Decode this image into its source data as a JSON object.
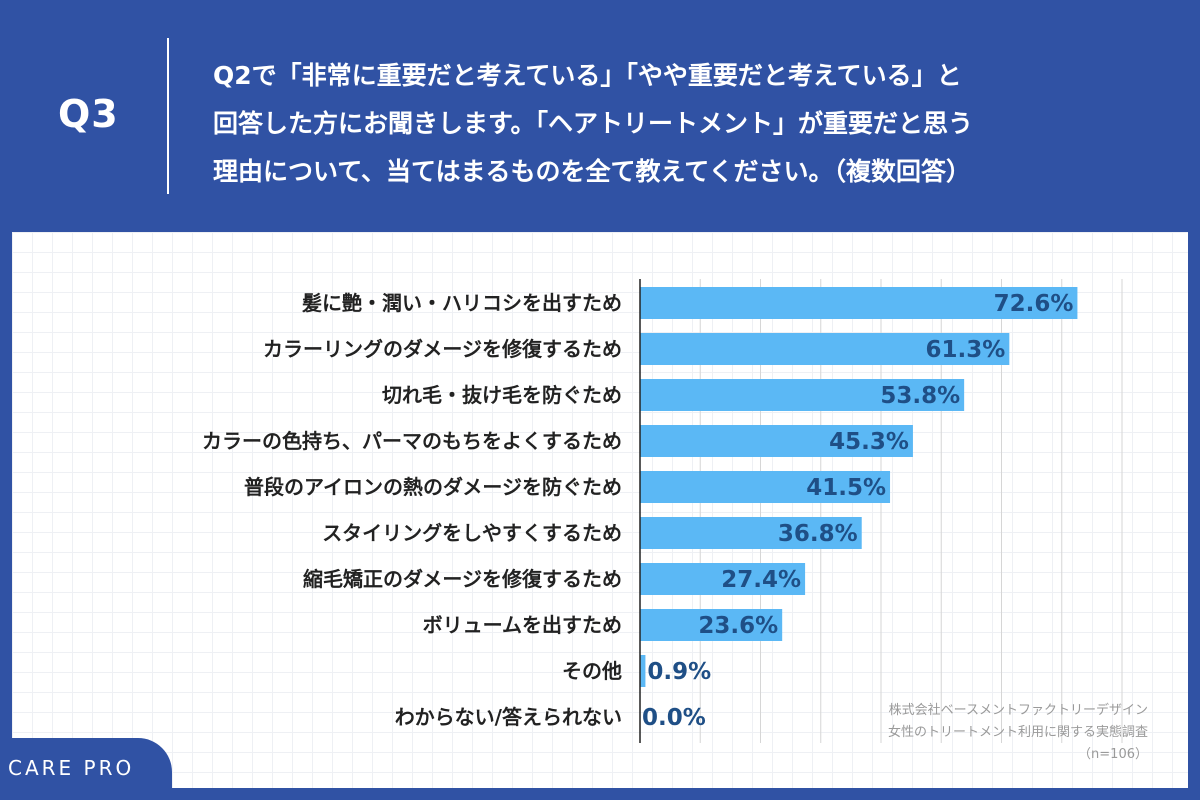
{
  "header": {
    "q_label": "Q3",
    "question_lines": [
      "Q2で「非常に重要だと考えている」「やや重要だと考えている」と",
      "回答した方にお聞きします。「ヘアトリートメント」が重要だと思う",
      "理由について、当てはまるものを全て教えてください。（複数回答）"
    ]
  },
  "chart_data": {
    "type": "bar",
    "orientation": "horizontal",
    "categories": [
      "髪に艶・潤い・ハリコシを出すため",
      "カラーリングのダメージを修復するため",
      "切れ毛・抜け毛を防ぐため",
      "カラーの色持ち、パーマのもちをよくするため",
      "普段のアイロンの熱のダメージを防ぐため",
      "スタイリングをしやすくするため",
      "縮毛矯正のダメージを修復するため",
      "ボリュームを出すため",
      "その他",
      "わからない/答えられない"
    ],
    "values": [
      72.6,
      61.3,
      53.8,
      45.3,
      41.5,
      36.8,
      27.4,
      23.6,
      0.9,
      0.0
    ],
    "value_labels": [
      "72.6%",
      "61.3%",
      "53.8%",
      "45.3%",
      "41.5%",
      "36.8%",
      "27.4%",
      "23.6%",
      "0.9%",
      "0.0%"
    ],
    "xlim": [
      0,
      80
    ],
    "grid": true,
    "bar_color": "#5bb8f5"
  },
  "source": {
    "line1": "株式会社ベースメントファクトリーデザイン",
    "line2": "女性のトリートメント利用に関する実態調査",
    "line3": "（n=106）"
  },
  "logo": {
    "text": "CARE PRO"
  },
  "colors": {
    "background": "#3052a4",
    "bar": "#5bb8f5",
    "value_text": "#1f4f86"
  }
}
